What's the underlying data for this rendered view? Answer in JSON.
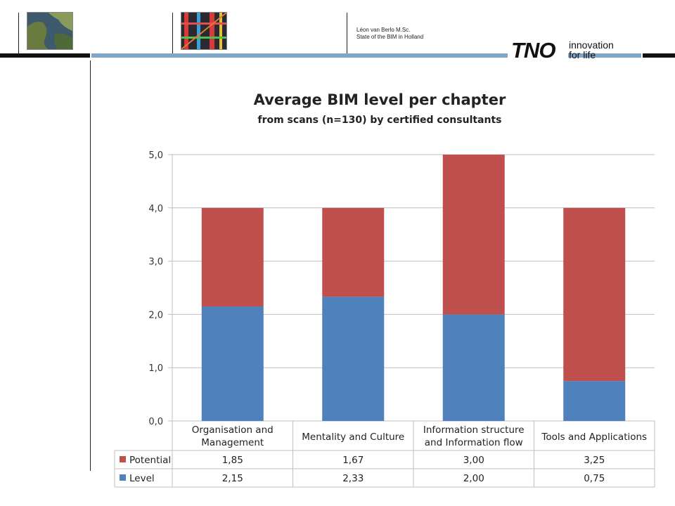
{
  "header": {
    "author_line1": "Léon van Berlo M.Sc.",
    "author_line2": "State of the BIM in Holland",
    "logo_text": "TNO",
    "logo_tag_line1": "innovation",
    "logo_tag_line2": "for life"
  },
  "colors": {
    "level": "#4f81bd",
    "potential": "#c0504d"
  },
  "chart_data": {
    "type": "bar",
    "stacked": true,
    "title": "Average BIM level per chapter",
    "subtitle": "from scans (n=130) by certified consultants",
    "categories": [
      [
        "Organisation and",
        "Management"
      ],
      [
        "Mentality and Culture"
      ],
      [
        "Information structure",
        "and Information flow"
      ],
      [
        "Tools and Applications"
      ]
    ],
    "series": [
      {
        "name": "Level",
        "values": [
          2.15,
          2.33,
          2.0,
          0.75
        ],
        "labels": [
          "2,15",
          "2,33",
          "2,00",
          "0,75"
        ]
      },
      {
        "name": "Potential",
        "values": [
          1.85,
          1.67,
          3.0,
          3.25
        ],
        "labels": [
          "1,85",
          "1,67",
          "3,00",
          "3,25"
        ]
      }
    ],
    "table_row_order": [
      "Potential",
      "Level"
    ],
    "ylim": [
      0,
      5
    ],
    "yticks": [
      "0,0",
      "1,0",
      "2,0",
      "3,0",
      "4,0",
      "5,0"
    ],
    "grid": true,
    "legend": "data-table"
  }
}
